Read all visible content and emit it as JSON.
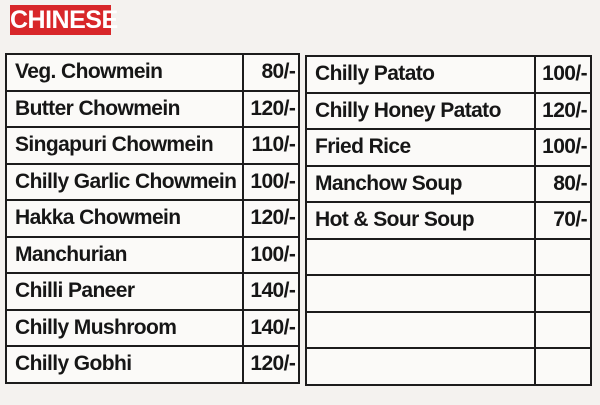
{
  "section_title": "CHINESE",
  "accent_color": "#d8272a",
  "left_items": [
    {
      "name": "Veg. Chowmein",
      "price": "80/-"
    },
    {
      "name": "Butter Chowmein",
      "price": "120/-"
    },
    {
      "name": "Singapuri Chowmein",
      "price": "110/-"
    },
    {
      "name": "Chilly Garlic Chowmein",
      "price": "100/-"
    },
    {
      "name": "Hakka Chowmein",
      "price": "120/-"
    },
    {
      "name": "Manchurian",
      "price": "100/-"
    },
    {
      "name": "Chilli Paneer",
      "price": "140/-"
    },
    {
      "name": "Chilly Mushroom",
      "price": "140/-"
    },
    {
      "name": "Chilly Gobhi",
      "price": "120/-"
    }
  ],
  "right_items": [
    {
      "name": "Chilly Patato",
      "price": "100/-"
    },
    {
      "name": "Chilly Honey Patato",
      "price": "120/-"
    },
    {
      "name": "Fried Rice",
      "price": "100/-"
    },
    {
      "name": "Manchow Soup",
      "price": "80/-"
    },
    {
      "name": "Hot & Sour Soup",
      "price": "70/-"
    },
    {
      "name": "",
      "price": ""
    },
    {
      "name": "",
      "price": ""
    },
    {
      "name": "",
      "price": ""
    },
    {
      "name": "",
      "price": ""
    }
  ]
}
